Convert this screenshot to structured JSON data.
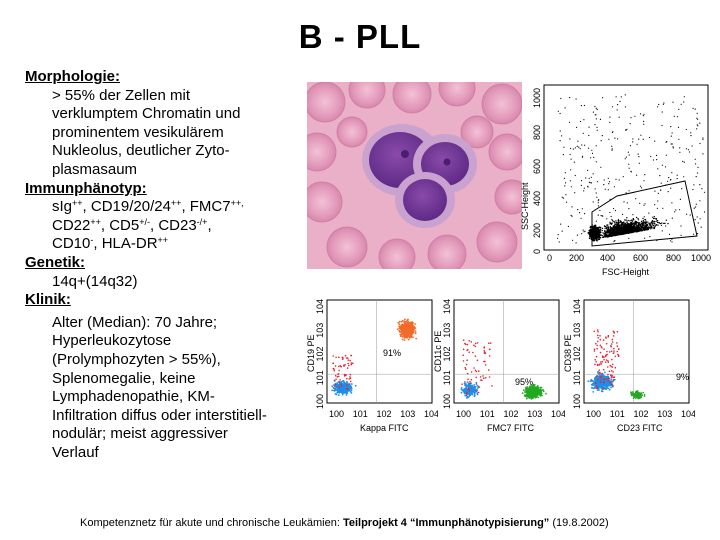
{
  "title": "B - PLL",
  "morphology": {
    "heading": "Morphologie:",
    "lines": [
      "> 55% der Zellen mit",
      "verklumptem Chromatin und",
      "prominentem vesikulärem",
      "Nukleolus, deutlicher Zyto-",
      "plasmasaum"
    ]
  },
  "immunophenotype": {
    "heading": "Immunphänotyp:",
    "l1_a": "sIg",
    "l1_a_sup": "++",
    "l1_b": ",  CD19/20/24",
    "l1_b_sup": "++",
    "l1_c": ", FMC7",
    "l1_c_sup": "++,",
    "l2_a": "CD22",
    "l2_a_sup": "++",
    "l2_b": ",  CD5",
    "l2_b_sup": "+/-",
    "l2_c": ", CD23",
    "l2_c_sup": "-/+",
    "l2_d": ",",
    "l3_a": "CD10",
    "l3_a_sup": "-",
    "l3_b": ", HLA-DR",
    "l3_b_sup": "++"
  },
  "genetics": {
    "heading": "Genetik:",
    "lines": [
      "14q+(14q32)"
    ]
  },
  "clinic": {
    "heading": "Klinik:",
    "lines": [
      "Alter (Median): 70 Jahre;",
      "Hyperleukozytose",
      "(Prolymphozyten > 55%),",
      "Splenomegalie, keine",
      "Lymphadenopathie, KM-",
      "Infiltration diffus oder interstitiell-",
      "nodulär; meist aggressiver",
      "Verlauf"
    ]
  },
  "scatter_main": {
    "ylabel": "SSC-Height",
    "xlabel": "FSC-Height",
    "yticks": [
      "1000",
      "800",
      "600",
      "400",
      "200",
      "0"
    ],
    "xticks": [
      "0",
      "200",
      "400",
      "600",
      "800",
      "1000"
    ]
  },
  "plots": [
    {
      "ylabel": "CD19 PE",
      "xlabel": "Kappa FITC",
      "percent": "91%",
      "color_main": "#f26a2a"
    },
    {
      "ylabel": "CD11c PE",
      "xlabel": "FMC7 FITC",
      "percent": "95%",
      "color_main": "#22aa22"
    },
    {
      "ylabel": "CD38 PE",
      "xlabel": "CD23 FITC",
      "percent": "9%",
      "color_main": "#22aa22"
    }
  ],
  "log_ticks": {
    "y": [
      "4",
      "3",
      "2",
      "1",
      "0"
    ],
    "x": [
      "0",
      "1",
      "2",
      "3",
      "4"
    ],
    "base": "10"
  },
  "footer": {
    "plain": "Kompetenznetz für akute und chronische Leukämien: ",
    "bold": "Teilprojekt 4 “Immunphänotypisierung”",
    "date": "  (19.8.2002)"
  },
  "colors": {
    "blue_population": "#1e8fe8",
    "red_population": "#e8202a",
    "green_population": "#22aa22",
    "orange_population": "#f26a2a"
  }
}
